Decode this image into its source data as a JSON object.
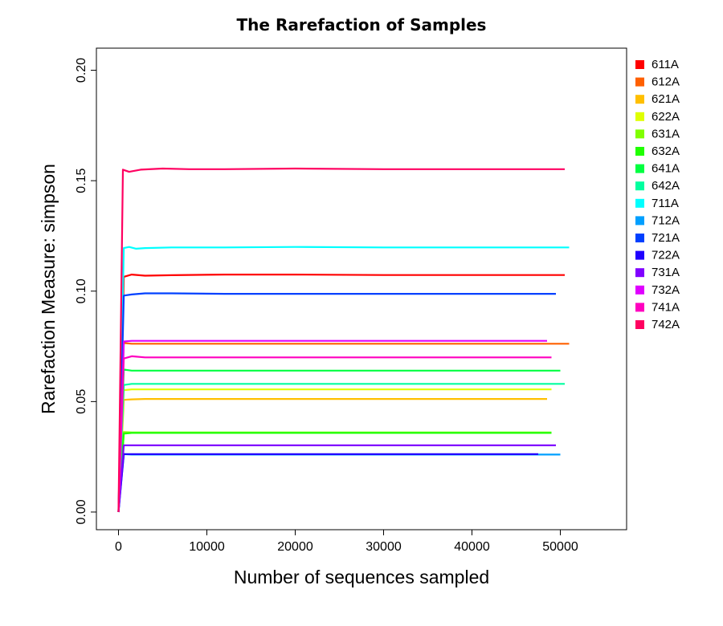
{
  "chart_data": {
    "type": "line",
    "title": "The Rarefaction of Samples",
    "xlabel": "Number of sequences sampled",
    "ylabel": "Rarefaction Measure: simpson",
    "xlim": [
      -2500,
      57500
    ],
    "ylim": [
      -0.008,
      0.21
    ],
    "x_ticks": [
      0,
      10000,
      20000,
      30000,
      40000,
      50000
    ],
    "x_tick_labels": [
      "0",
      "10000",
      "20000",
      "30000",
      "40000",
      "50000"
    ],
    "y_ticks": [
      0.0,
      0.05,
      0.1,
      0.15,
      0.2
    ],
    "y_tick_labels": [
      "0.00",
      "0.05",
      "0.10",
      "0.15",
      "0.20"
    ],
    "grid": false,
    "legend_position": "right",
    "series": [
      {
        "name": "611A",
        "color": "#FF0000",
        "final_x": 50500,
        "values": [
          [
            0,
            0
          ],
          [
            600,
            0.1065
          ],
          [
            1500,
            0.1075
          ],
          [
            3000,
            0.107
          ],
          [
            6000,
            0.1072
          ],
          [
            12000,
            0.1075
          ],
          [
            20000,
            0.1075
          ],
          [
            30000,
            0.1073
          ],
          [
            40000,
            0.1073
          ],
          [
            50500,
            0.1073
          ]
        ]
      },
      {
        "name": "612A",
        "color": "#FF6000",
        "final_x": 51000,
        "values": [
          [
            0,
            0
          ],
          [
            600,
            0.0765
          ],
          [
            1500,
            0.0762
          ],
          [
            3000,
            0.0762
          ],
          [
            10000,
            0.0762
          ],
          [
            20000,
            0.0762
          ],
          [
            30000,
            0.0762
          ],
          [
            40000,
            0.0762
          ],
          [
            51000,
            0.0762
          ]
        ]
      },
      {
        "name": "621A",
        "color": "#FFBF00",
        "final_x": 48500,
        "values": [
          [
            0,
            0
          ],
          [
            600,
            0.0508
          ],
          [
            1500,
            0.051
          ],
          [
            3000,
            0.0512
          ],
          [
            10000,
            0.0512
          ],
          [
            20000,
            0.0512
          ],
          [
            30000,
            0.0512
          ],
          [
            40000,
            0.0512
          ],
          [
            48500,
            0.0512
          ]
        ]
      },
      {
        "name": "622A",
        "color": "#DFFF00",
        "final_x": 49000,
        "values": [
          [
            0,
            0
          ],
          [
            600,
            0.0552
          ],
          [
            1500,
            0.0555
          ],
          [
            3000,
            0.0555
          ],
          [
            10000,
            0.0555
          ],
          [
            20000,
            0.0555
          ],
          [
            30000,
            0.0555
          ],
          [
            40000,
            0.0555
          ],
          [
            49000,
            0.0555
          ]
        ]
      },
      {
        "name": "631A",
        "color": "#80FF00",
        "final_x": 49000,
        "values": [
          [
            0,
            0
          ],
          [
            600,
            0.0362
          ],
          [
            1500,
            0.036
          ],
          [
            3000,
            0.036
          ],
          [
            10000,
            0.036
          ],
          [
            20000,
            0.036
          ],
          [
            30000,
            0.036
          ],
          [
            40000,
            0.036
          ],
          [
            49000,
            0.036
          ]
        ]
      },
      {
        "name": "632A",
        "color": "#20FF00",
        "final_x": 49000,
        "values": [
          [
            0,
            0
          ],
          [
            600,
            0.0355
          ],
          [
            1500,
            0.0358
          ],
          [
            3000,
            0.0358
          ],
          [
            10000,
            0.0358
          ],
          [
            20000,
            0.0358
          ],
          [
            30000,
            0.0358
          ],
          [
            40000,
            0.0358
          ],
          [
            49000,
            0.0358
          ]
        ]
      },
      {
        "name": "641A",
        "color": "#00FF40",
        "final_x": 50000,
        "values": [
          [
            0,
            0
          ],
          [
            600,
            0.0645
          ],
          [
            1500,
            0.064
          ],
          [
            3000,
            0.064
          ],
          [
            10000,
            0.064
          ],
          [
            20000,
            0.064
          ],
          [
            30000,
            0.064
          ],
          [
            40000,
            0.064
          ],
          [
            50000,
            0.064
          ]
        ]
      },
      {
        "name": "642A",
        "color": "#00FF9F",
        "final_x": 50500,
        "values": [
          [
            0,
            0
          ],
          [
            600,
            0.0575
          ],
          [
            1500,
            0.058
          ],
          [
            3000,
            0.058
          ],
          [
            10000,
            0.058
          ],
          [
            20000,
            0.058
          ],
          [
            30000,
            0.058
          ],
          [
            40000,
            0.058
          ],
          [
            50500,
            0.058
          ]
        ]
      },
      {
        "name": "711A",
        "color": "#00FFFF",
        "final_x": 51000,
        "values": [
          [
            0,
            0
          ],
          [
            600,
            0.1195
          ],
          [
            1200,
            0.12
          ],
          [
            2000,
            0.1192
          ],
          [
            3000,
            0.1195
          ],
          [
            6000,
            0.1198
          ],
          [
            12000,
            0.1198
          ],
          [
            20000,
            0.12
          ],
          [
            30000,
            0.1198
          ],
          [
            40000,
            0.1198
          ],
          [
            51000,
            0.1198
          ]
        ]
      },
      {
        "name": "712A",
        "color": "#009FFF",
        "final_x": 50000,
        "values": [
          [
            0,
            0
          ],
          [
            600,
            0.0262
          ],
          [
            1500,
            0.026
          ],
          [
            3000,
            0.026
          ],
          [
            10000,
            0.026
          ],
          [
            20000,
            0.026
          ],
          [
            30000,
            0.026
          ],
          [
            40000,
            0.026
          ],
          [
            50000,
            0.026
          ]
        ]
      },
      {
        "name": "721A",
        "color": "#0040FF",
        "final_x": 49500,
        "values": [
          [
            0,
            0
          ],
          [
            600,
            0.098
          ],
          [
            1500,
            0.0985
          ],
          [
            3000,
            0.099
          ],
          [
            6000,
            0.099
          ],
          [
            12000,
            0.0988
          ],
          [
            20000,
            0.0988
          ],
          [
            30000,
            0.0988
          ],
          [
            40000,
            0.0988
          ],
          [
            49500,
            0.0988
          ]
        ]
      },
      {
        "name": "722A",
        "color": "#2000FF",
        "final_x": 47500,
        "values": [
          [
            0,
            0
          ],
          [
            600,
            0.0262
          ],
          [
            1500,
            0.0262
          ],
          [
            3000,
            0.0262
          ],
          [
            10000,
            0.0262
          ],
          [
            20000,
            0.0262
          ],
          [
            30000,
            0.0262
          ],
          [
            40000,
            0.0262
          ],
          [
            47500,
            0.0262
          ]
        ]
      },
      {
        "name": "731A",
        "color": "#8000FF",
        "final_x": 49500,
        "values": [
          [
            0,
            0
          ],
          [
            600,
            0.0302
          ],
          [
            1500,
            0.0302
          ],
          [
            3000,
            0.0302
          ],
          [
            10000,
            0.0302
          ],
          [
            20000,
            0.0302
          ],
          [
            30000,
            0.0302
          ],
          [
            40000,
            0.0302
          ],
          [
            49500,
            0.0302
          ]
        ]
      },
      {
        "name": "732A",
        "color": "#DF00FF",
        "final_x": 48500,
        "values": [
          [
            0,
            0
          ],
          [
            600,
            0.0772
          ],
          [
            1500,
            0.0775
          ],
          [
            3000,
            0.0775
          ],
          [
            10000,
            0.0775
          ],
          [
            20000,
            0.0775
          ],
          [
            30000,
            0.0775
          ],
          [
            40000,
            0.0775
          ],
          [
            48500,
            0.0775
          ]
        ]
      },
      {
        "name": "741A",
        "color": "#FF00BF",
        "final_x": 49000,
        "values": [
          [
            0,
            0
          ],
          [
            600,
            0.0695
          ],
          [
            1500,
            0.0705
          ],
          [
            3000,
            0.07
          ],
          [
            10000,
            0.07
          ],
          [
            20000,
            0.07
          ],
          [
            30000,
            0.07
          ],
          [
            40000,
            0.07
          ],
          [
            49000,
            0.07
          ]
        ]
      },
      {
        "name": "742A",
        "color": "#FF0060",
        "final_x": 50500,
        "values": [
          [
            0,
            0
          ],
          [
            500,
            0.155
          ],
          [
            1200,
            0.154
          ],
          [
            2500,
            0.155
          ],
          [
            5000,
            0.1555
          ],
          [
            8000,
            0.1552
          ],
          [
            12000,
            0.1552
          ],
          [
            20000,
            0.1555
          ],
          [
            30000,
            0.1552
          ],
          [
            40000,
            0.1552
          ],
          [
            50500,
            0.1552
          ]
        ]
      }
    ]
  }
}
